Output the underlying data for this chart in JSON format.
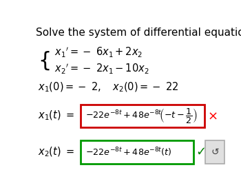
{
  "title": "Solve the system of differential equations.",
  "title_fontsize": 11,
  "system_line1": "$x_1{}^\\prime = -\\ 6x_1 + 2x_2$",
  "system_line2": "$x_2{}^\\prime = -\\ 2x_1 - 10x_2$",
  "init_cond": "$x_1(0) = -\\ 2, \\quad x_2(0) = -\\ 22$",
  "answer1_label": "$x_1(t)\\ =$",
  "answer1_content": "$-22e^{-8t} + 48e^{-8t}\\!\\left(-t - \\dfrac{1}{2}\\right)$",
  "answer1_box_color": "#cc0000",
  "answer2_label": "$x_2(t)\\ =$",
  "answer2_content": "$-22e^{-8t} + 48e^{-8t}(t)$",
  "answer2_box_color": "#009900",
  "background_color": "#ffffff",
  "text_color": "#000000",
  "math_fontsize": 10.5
}
